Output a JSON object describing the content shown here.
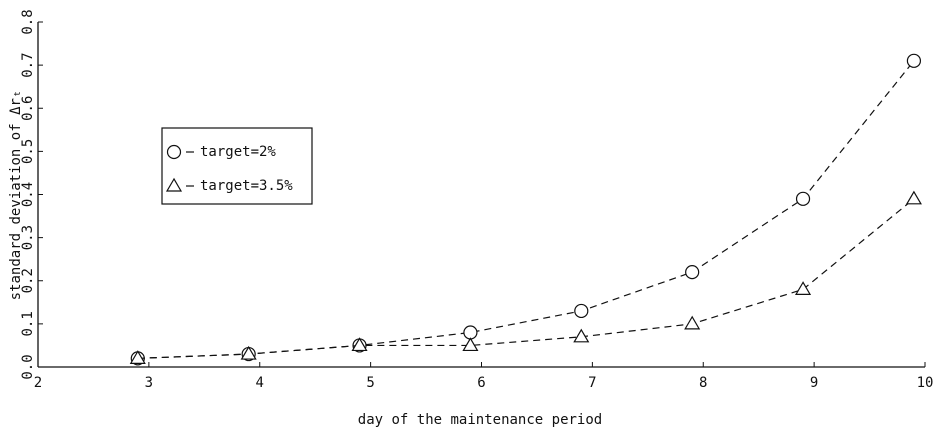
{
  "chart_data": {
    "type": "line",
    "x_label": "day of the maintenance period",
    "y_label": "standard deviation of Δrₜ",
    "x": [
      2.9,
      3.9,
      4.9,
      5.9,
      6.9,
      7.9,
      8.9,
      9.9
    ],
    "series": [
      {
        "name": "target=2%",
        "marker": "circle",
        "color": "#111",
        "values": [
          0.02,
          0.03,
          0.05,
          0.08,
          0.13,
          0.22,
          0.39,
          0.71
        ]
      },
      {
        "name": "target=3.5%",
        "marker": "triangle",
        "color": "#111",
        "values": [
          0.02,
          0.03,
          0.05,
          0.05,
          0.07,
          0.1,
          0.18,
          0.39
        ]
      }
    ],
    "xlim": [
      2,
      10
    ],
    "xticks": [
      2,
      3,
      4,
      5,
      6,
      7,
      8,
      9,
      10
    ],
    "ylim": [
      0,
      0.8
    ],
    "yticks": [
      {
        "value": 0,
        "label": "0.0"
      },
      0.1,
      0.2,
      0.3,
      0.4,
      0.5,
      0.6,
      0.7,
      0.8
    ],
    "grid": false,
    "legend": "upper left",
    "line_style": "dashed"
  }
}
